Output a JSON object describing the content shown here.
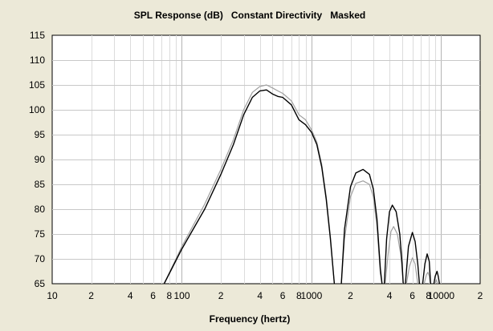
{
  "chart_data": {
    "type": "line",
    "title": "SPL Response (dB)   Constant Directivity   Masked",
    "xlabel": "Frequency (hertz)",
    "ylabel": "",
    "x_scale": "log",
    "xlim": [
      10,
      20000
    ],
    "ylim": [
      65,
      115
    ],
    "grid": true,
    "legend": "none",
    "y_ticks": [
      "65",
      "70",
      "75",
      "80",
      "85",
      "90",
      "95",
      "100",
      "105",
      "110",
      "115"
    ],
    "x_ticks": [
      {
        "value": 10,
        "label": "10"
      },
      {
        "value": 20,
        "label": "2"
      },
      {
        "value": 40,
        "label": "4"
      },
      {
        "value": 60,
        "label": "6"
      },
      {
        "value": 80,
        "label": "8"
      },
      {
        "value": 100,
        "label": "100"
      },
      {
        "value": 200,
        "label": "2"
      },
      {
        "value": 400,
        "label": "4"
      },
      {
        "value": 600,
        "label": "6"
      },
      {
        "value": 800,
        "label": "8"
      },
      {
        "value": 1000,
        "label": "1000"
      },
      {
        "value": 2000,
        "label": "2"
      },
      {
        "value": 4000,
        "label": "4"
      },
      {
        "value": 6000,
        "label": "6"
      },
      {
        "value": 8000,
        "label": "8"
      },
      {
        "value": 10000,
        "label": "10000"
      },
      {
        "value": 20000,
        "label": "2"
      }
    ],
    "series": [
      {
        "color": "#000000",
        "points": [
          [
            73,
            65
          ],
          [
            100,
            72
          ],
          [
            150,
            80
          ],
          [
            200,
            87
          ],
          [
            250,
            93
          ],
          [
            300,
            99
          ],
          [
            350,
            102.5
          ],
          [
            400,
            103.8
          ],
          [
            450,
            104
          ],
          [
            500,
            103.2
          ],
          [
            550,
            102.7
          ],
          [
            600,
            102.5
          ],
          [
            700,
            101
          ],
          [
            800,
            98
          ],
          [
            900,
            97
          ],
          [
            1000,
            95.5
          ],
          [
            1100,
            93
          ],
          [
            1200,
            88.5
          ],
          [
            1300,
            82
          ],
          [
            1400,
            74
          ],
          [
            1500,
            65
          ],
          null,
          [
            1700,
            65
          ],
          [
            1800,
            76
          ],
          [
            2000,
            84.5
          ],
          [
            2200,
            87.3
          ],
          [
            2500,
            88
          ],
          [
            2800,
            87
          ],
          [
            3000,
            84
          ],
          [
            3200,
            78
          ],
          [
            3400,
            68
          ],
          [
            3500,
            65
          ],
          null,
          [
            3650,
            65
          ],
          [
            3800,
            74
          ],
          [
            4000,
            79.5
          ],
          [
            4200,
            80.8
          ],
          [
            4500,
            79.5
          ],
          [
            4800,
            75
          ],
          [
            5000,
            69
          ],
          [
            5100,
            65
          ],
          null,
          [
            5300,
            65
          ],
          [
            5600,
            72.5
          ],
          [
            6000,
            75.3
          ],
          [
            6300,
            73.5
          ],
          [
            6600,
            69
          ],
          [
            6800,
            65
          ],
          null,
          [
            7200,
            65
          ],
          [
            7500,
            69
          ],
          [
            7800,
            71
          ],
          [
            8100,
            69.5
          ],
          [
            8300,
            65
          ],
          null,
          [
            8800,
            65
          ],
          [
            9000,
            66.5
          ],
          [
            9300,
            67.5
          ],
          [
            9500,
            66.5
          ],
          [
            9700,
            65
          ]
        ]
      },
      {
        "color": "#a0a0a0",
        "points": [
          [
            73,
            65
          ],
          [
            100,
            72.5
          ],
          [
            150,
            81
          ],
          [
            200,
            88
          ],
          [
            250,
            94
          ],
          [
            300,
            100
          ],
          [
            350,
            103.5
          ],
          [
            400,
            104.7
          ],
          [
            450,
            105
          ],
          [
            500,
            104.4
          ],
          [
            550,
            103.8
          ],
          [
            600,
            103.3
          ],
          [
            700,
            101.8
          ],
          [
            800,
            99
          ],
          [
            900,
            98
          ],
          [
            1000,
            96
          ],
          [
            1100,
            93.5
          ],
          [
            1200,
            89
          ],
          [
            1300,
            82.5
          ],
          [
            1400,
            74.5
          ],
          [
            1500,
            65
          ],
          null,
          [
            1700,
            65
          ],
          [
            1800,
            74
          ],
          [
            2000,
            82.5
          ],
          [
            2200,
            85.2
          ],
          [
            2500,
            85.7
          ],
          [
            2800,
            85
          ],
          [
            3000,
            82.5
          ],
          [
            3200,
            76.5
          ],
          [
            3400,
            67
          ],
          [
            3500,
            65
          ],
          null,
          [
            3700,
            65
          ],
          [
            3900,
            71
          ],
          [
            4100,
            75.5
          ],
          [
            4300,
            76.5
          ],
          [
            4600,
            75
          ],
          [
            4900,
            70.5
          ],
          [
            5100,
            65
          ],
          null,
          [
            5400,
            65
          ],
          [
            5700,
            68.5
          ],
          [
            6000,
            70.2
          ],
          [
            6300,
            69
          ],
          [
            6600,
            65
          ],
          null,
          [
            7400,
            65
          ],
          [
            7700,
            66.8
          ],
          [
            7900,
            67.3
          ],
          [
            8100,
            66.5
          ],
          [
            8300,
            65
          ],
          null,
          [
            9000,
            65
          ],
          [
            9200,
            65.8
          ],
          [
            9400,
            65
          ]
        ]
      }
    ]
  }
}
